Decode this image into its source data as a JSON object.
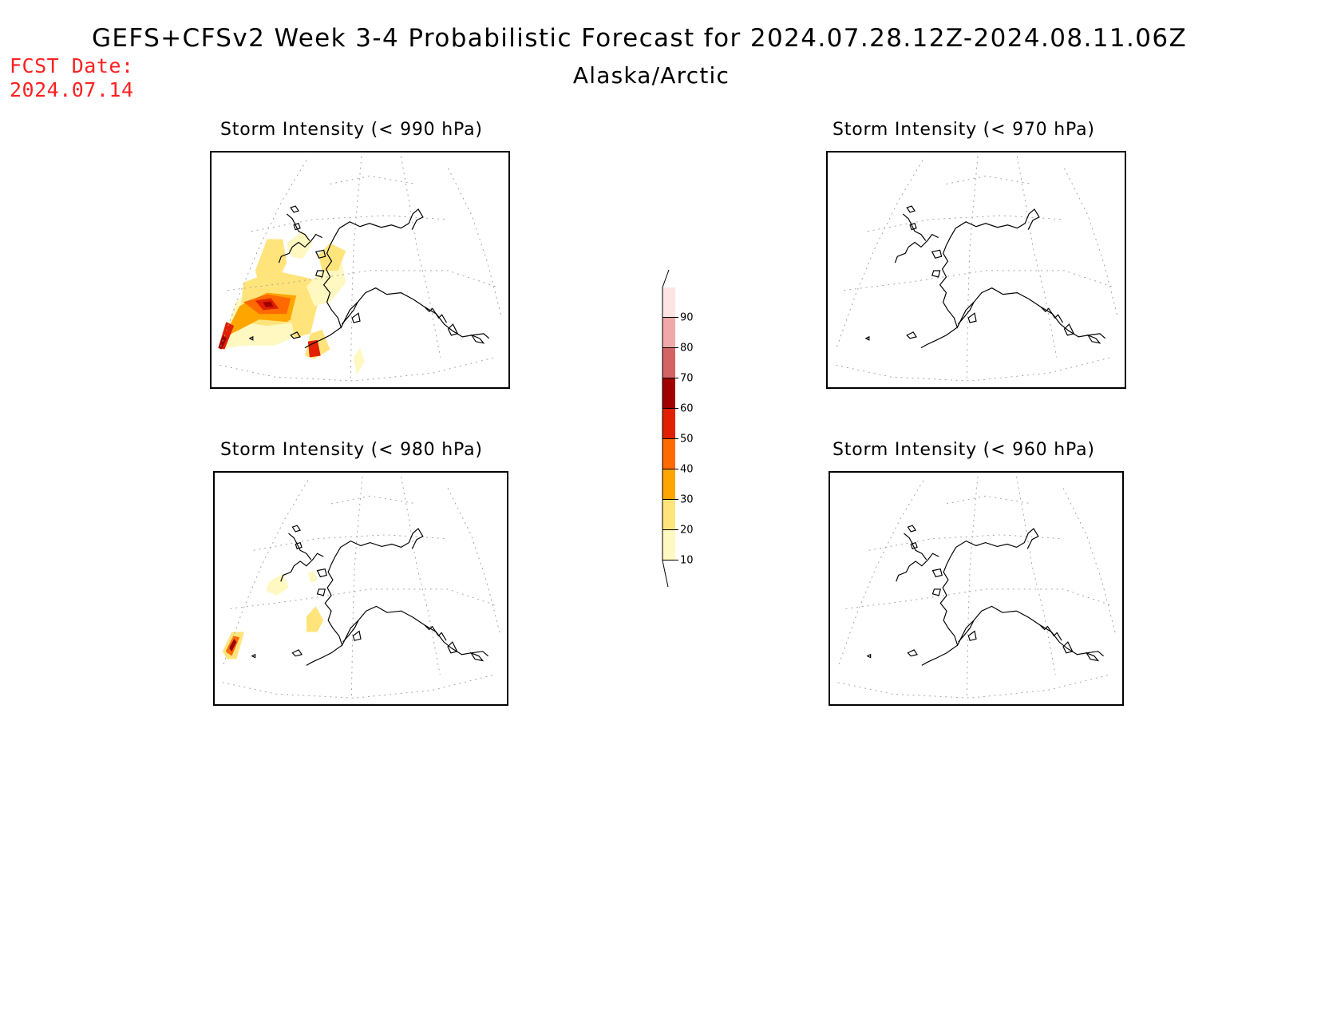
{
  "header": {
    "title": "GEFS+CFSv2 Week 3-4 Probabilistic Forecast for 2024.07.28.12Z-2024.08.11.06Z",
    "subtitle": "Alaska/Arctic",
    "fcst_label": "FCST Date:",
    "fcst_date": "2024.07.14"
  },
  "panels": [
    {
      "id": "p990",
      "title": "Storm Intensity (< 990 hPa)",
      "has_shading": true
    },
    {
      "id": "p970",
      "title": "Storm Intensity (< 970 hPa)",
      "has_shading": false
    },
    {
      "id": "p980",
      "title": "Storm Intensity (< 980 hPa)",
      "has_shading": true
    },
    {
      "id": "p960",
      "title": "Storm Intensity (< 960 hPa)",
      "has_shading": false
    }
  ],
  "colorbar": {
    "levels": [
      "10",
      "20",
      "30",
      "40",
      "50",
      "60",
      "70",
      "80",
      "90"
    ],
    "colors": [
      "#fff8c0",
      "#ffe47c",
      "#ffa500",
      "#ff6a00",
      "#e02000",
      "#a00000",
      "#d46464",
      "#f0a8a8",
      "#ffe4e4"
    ]
  }
}
